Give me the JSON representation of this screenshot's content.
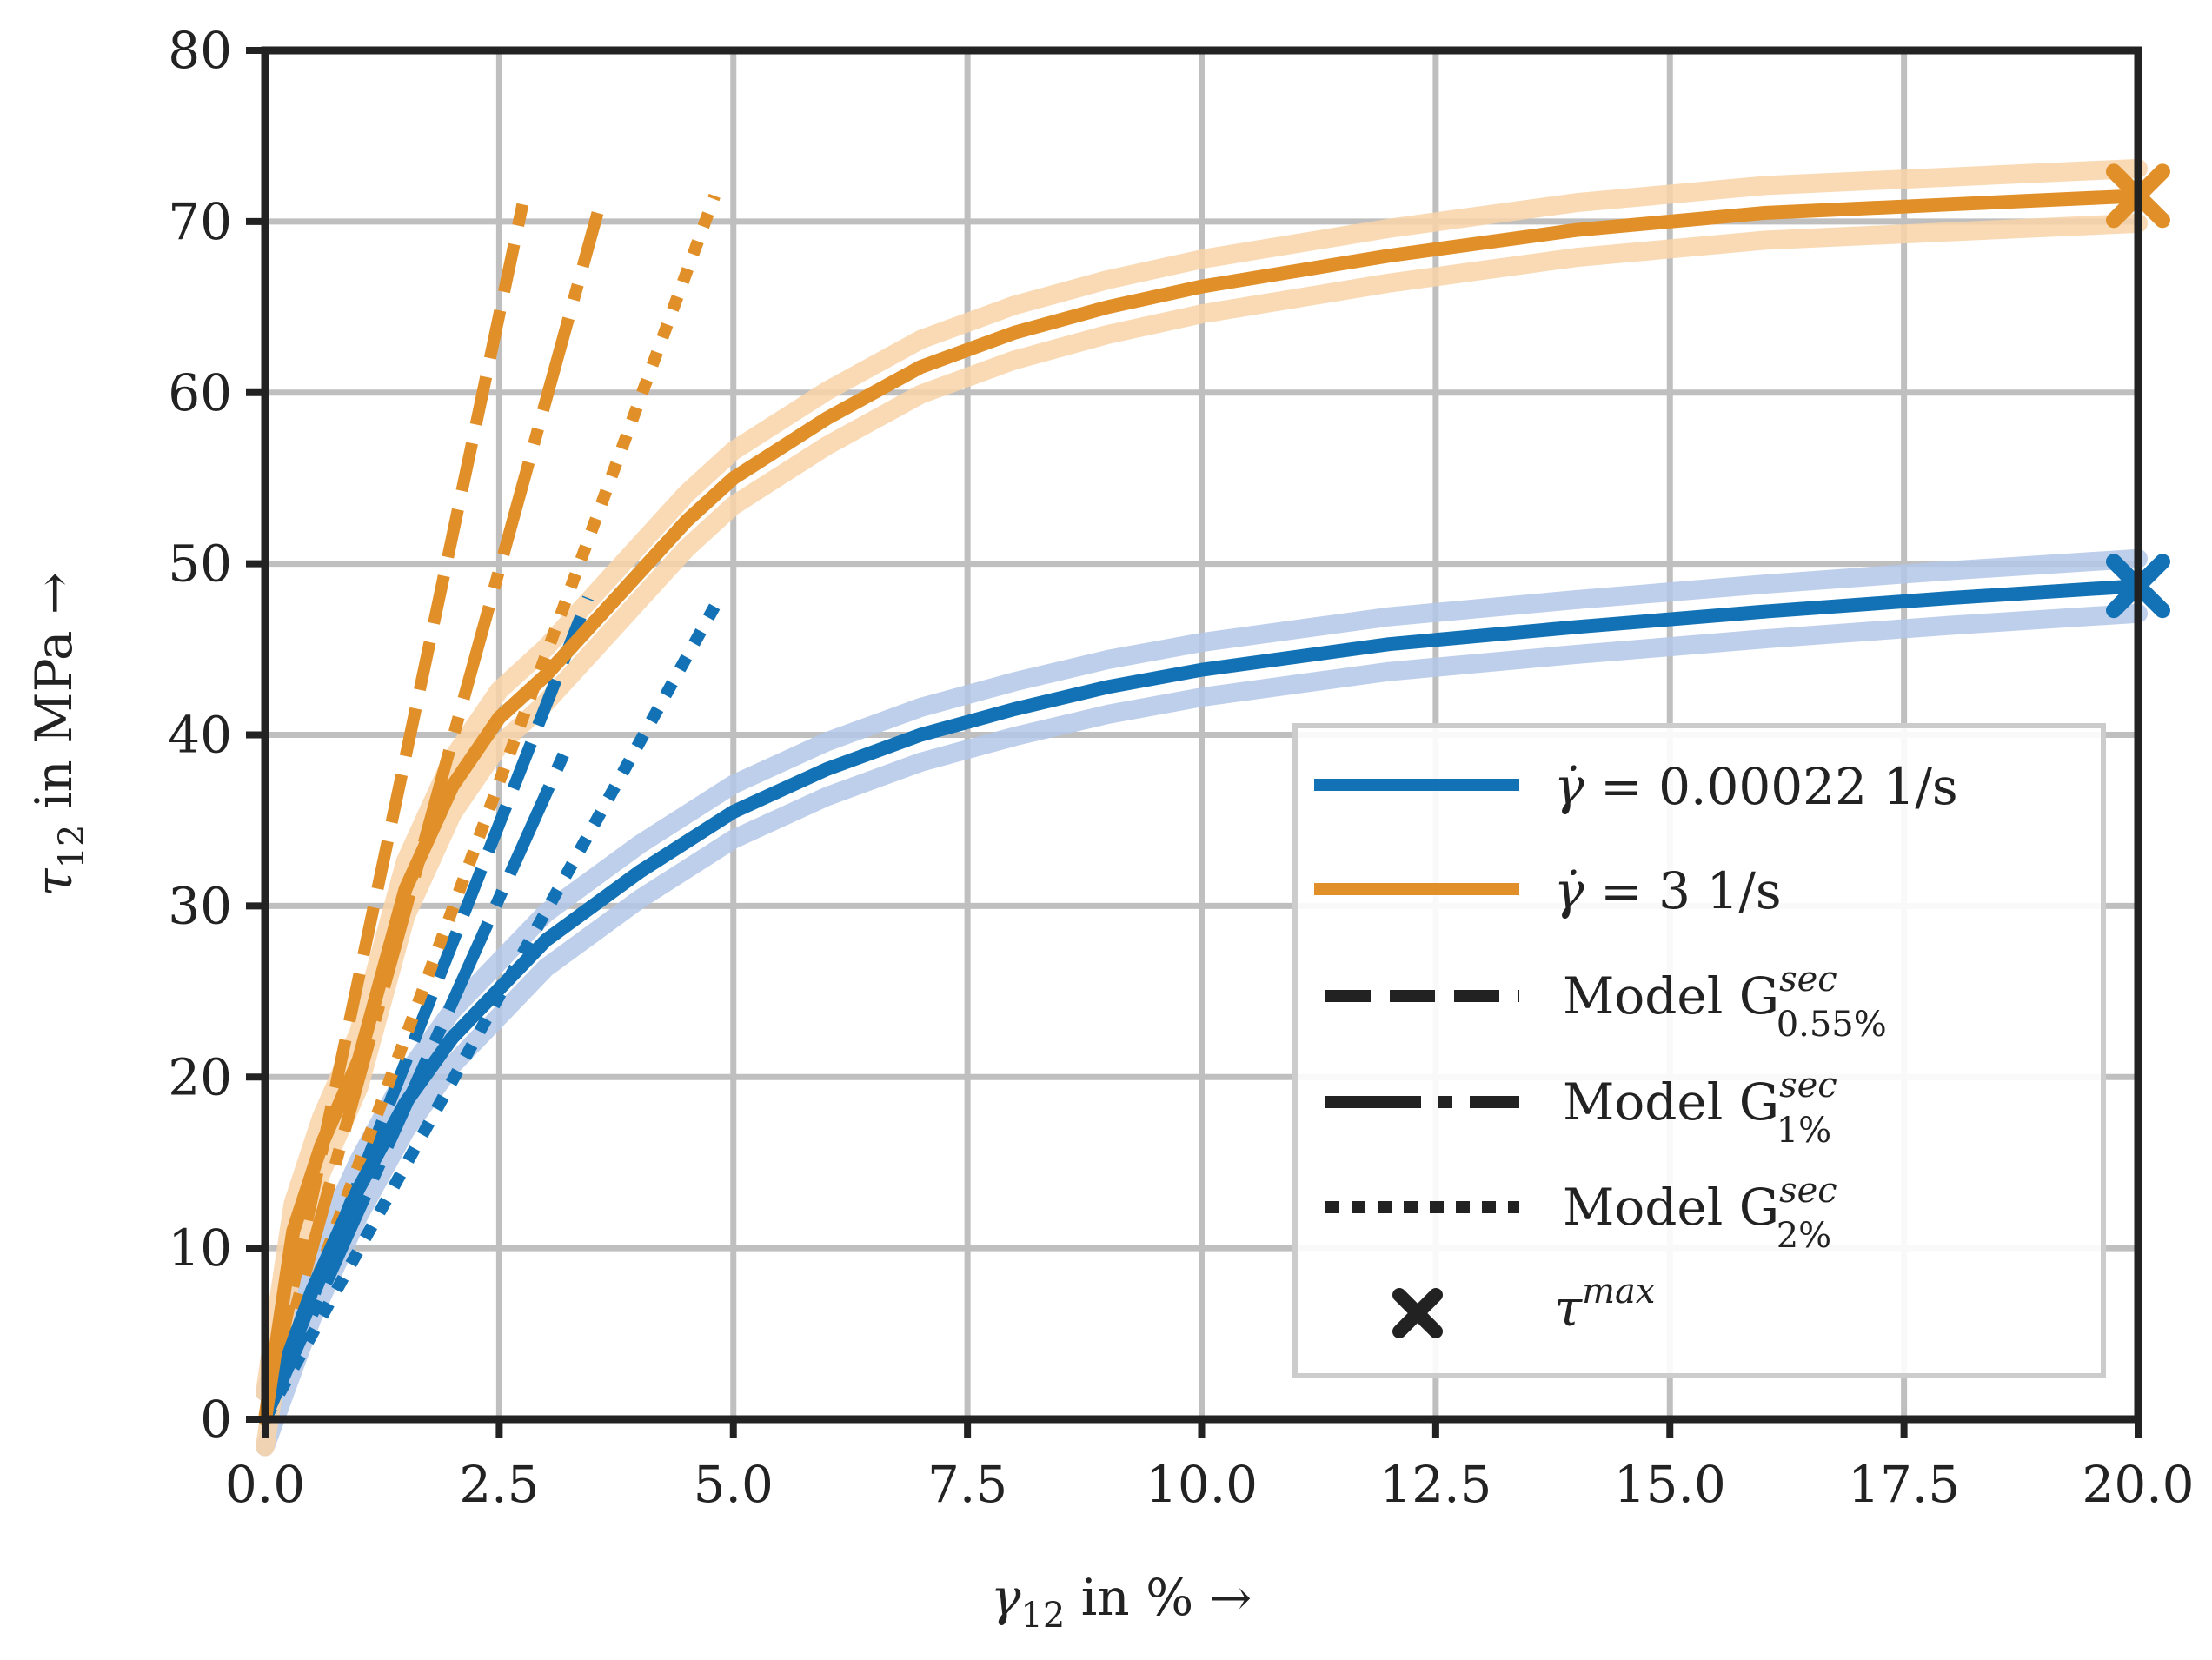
{
  "chart_data": {
    "type": "line",
    "xlabel": "γ12 in % →",
    "ylabel": "τ12 in MPa →",
    "xlim": [
      0,
      20
    ],
    "ylim": [
      0,
      80
    ],
    "xticks": [
      0.0,
      2.5,
      5.0,
      7.5,
      10.0,
      12.5,
      15.0,
      17.5,
      20.0
    ],
    "xtick_labels": [
      "0.0",
      "2.5",
      "5.0",
      "7.5",
      "10.0",
      "12.5",
      "15.0",
      "17.5",
      "20.0"
    ],
    "yticks": [
      0,
      10,
      20,
      30,
      40,
      50,
      60,
      70,
      80
    ],
    "ytick_labels": [
      "0",
      "10",
      "20",
      "30",
      "40",
      "50",
      "60",
      "70",
      "80"
    ],
    "grid": true,
    "legend_position": "lower-right",
    "colors": {
      "blue": "#1272b5",
      "blue_band": "#b3c7e8",
      "orange": "#e18f28",
      "orange_band": "#f8d3a8",
      "black": "#222222",
      "grid": "#bfbfbf"
    },
    "series": [
      {
        "name": "γ̇ = 0.00022 1/s",
        "color": "#1272b5",
        "style": "solid",
        "x": [
          0,
          0.5,
          1.0,
          1.5,
          2.0,
          3.0,
          4.0,
          5.0,
          6.0,
          7.0,
          8.0,
          9.0,
          10.0,
          12.0,
          14.0,
          16.0,
          18.0,
          20.0
        ],
        "y": [
          0,
          7.5,
          13.5,
          18.5,
          22.3,
          28.0,
          32.0,
          35.5,
          38.0,
          40.0,
          41.5,
          42.8,
          43.8,
          45.3,
          46.3,
          47.2,
          48.0,
          48.7
        ]
      },
      {
        "name": "γ̇ = 3 1/s",
        "color": "#e18f28",
        "style": "solid",
        "x": [
          0,
          0.3,
          0.6,
          1.0,
          1.5,
          2.0,
          2.5,
          3.0,
          3.5,
          4.0,
          4.5,
          5.0,
          6.0,
          7.0,
          8.0,
          9.0,
          10.0,
          12.0,
          14.0,
          16.0,
          18.0,
          20.0
        ],
        "y": [
          0,
          11,
          16,
          21,
          31,
          37,
          41,
          43.5,
          46.5,
          49.5,
          52.5,
          55,
          58.5,
          61.5,
          63.5,
          65,
          66.2,
          68,
          69.5,
          70.5,
          71,
          71.5
        ]
      }
    ],
    "model_lines": [
      {
        "name": "Model G^sec_0.55% (blue)",
        "color": "#1272b5",
        "style": "dashed",
        "x": [
          0,
          3.45
        ],
        "y": [
          0,
          48
        ]
      },
      {
        "name": "Model G^sec_1% (blue)",
        "color": "#1272b5",
        "style": "dashdot",
        "x": [
          0,
          3.2
        ],
        "y": [
          0,
          39
        ]
      },
      {
        "name": "Model G^sec_2% (blue)",
        "color": "#1272b5",
        "style": "dotted",
        "x": [
          0,
          4.8
        ],
        "y": [
          0,
          47.5
        ]
      },
      {
        "name": "Model G^sec_0.55% (orange)",
        "color": "#e18f28",
        "style": "dashed",
        "x": [
          0,
          2.75
        ],
        "y": [
          0,
          71
        ]
      },
      {
        "name": "Model G^sec_1% (orange)",
        "color": "#e18f28",
        "style": "dashdot",
        "x": [
          0,
          3.55
        ],
        "y": [
          0,
          70.5
        ]
      },
      {
        "name": "Model G^sec_2% (orange)",
        "color": "#e18f28",
        "style": "dotted",
        "x": [
          0,
          4.8
        ],
        "y": [
          0,
          71.5
        ]
      }
    ],
    "max_markers": [
      {
        "label": "τ^max",
        "color": "#1272b5",
        "x": 20.0,
        "y": 48.7
      },
      {
        "label": "τ^max",
        "color": "#e18f28",
        "x": 20.0,
        "y": 71.5
      }
    ],
    "legend": {
      "blue": {
        "prefix": "γ̇",
        "text": "= 0.00022 1/s"
      },
      "orange": {
        "prefix": "γ̇",
        "text": "= 3 1/s"
      },
      "m055": {
        "text": "Model G",
        "sup": "sec",
        "sub": "0.55%"
      },
      "m1": {
        "text": "Model G",
        "sup": "sec",
        "sub": "1%"
      },
      "m2": {
        "text": "Model G",
        "sup": "sec",
        "sub": "2%"
      },
      "max": {
        "text": "τ",
        "sup": "max"
      }
    }
  }
}
